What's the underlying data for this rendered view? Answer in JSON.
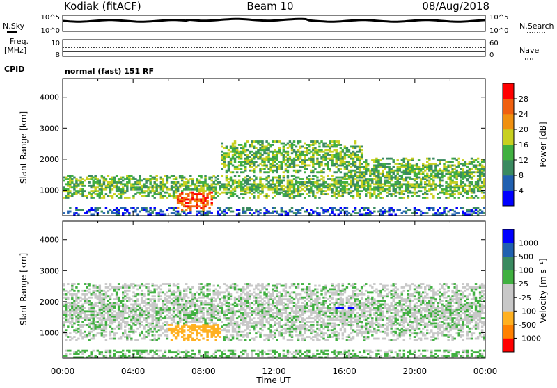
{
  "header": {
    "station": "Kodiak (fitACF)",
    "beam": "Beam 10",
    "date": "08/Aug/2018"
  },
  "left_labels": {
    "nsky": "N.Sky",
    "freq_line1": "Freq.",
    "freq_line2": "[MHz]",
    "cpid": "CPID",
    "nsky_ticks": [
      "10^5",
      "10^0"
    ],
    "freq_ticks": [
      "10",
      "8"
    ]
  },
  "right_labels": {
    "nsearch": "N.Search",
    "nave": "Nave",
    "nsearch_ticks": [
      "10^5",
      "10^0"
    ],
    "nave_ticks": [
      "60",
      "0"
    ]
  },
  "cpid_text": "normal (fast) 151 RF",
  "colors": {
    "power_scale": [
      "#0000ff",
      "#2060b0",
      "#3a8a60",
      "#40b040",
      "#c8d020",
      "#f09010",
      "#f06010",
      "#ff0000"
    ],
    "velocity_scale": [
      "#ff0000",
      "#ff8000",
      "#ffb020",
      "#c8c8c8",
      "#c8c8c8",
      "#40b040",
      "#3a8a60",
      "#2060b0",
      "#0000ff"
    ]
  },
  "chart_data": [
    {
      "type": "heatmap",
      "title": "",
      "quantity": "Power",
      "ylabel": "Slant Range [km]",
      "yticks": [
        "4000",
        "3000",
        "2000",
        "1000"
      ],
      "ylim": [
        180,
        4600
      ],
      "xlim": [
        0,
        24
      ],
      "colorbar_label": "Power [dB]",
      "colorbar_ticks": [
        "28",
        "24",
        "20",
        "16",
        "12",
        "8",
        "4"
      ],
      "features": [
        {
          "name": "lower band",
          "start_hour": 0,
          "end_hour": 24,
          "range_km": [
            700,
            1500
          ],
          "level": "medium"
        },
        {
          "name": "strong core",
          "start_hour": 6.5,
          "end_hour": 8.5,
          "range_km": [
            300,
            1100
          ],
          "level": "high"
        },
        {
          "name": "upper arc",
          "start_hour": 9,
          "end_hour": 17,
          "range_km": [
            1500,
            2600
          ],
          "level": "medium"
        },
        {
          "name": "evening band",
          "start_hour": 16,
          "end_hour": 24,
          "range_km": [
            1100,
            2000
          ],
          "level": "medium"
        }
      ]
    },
    {
      "type": "heatmap",
      "title": "",
      "quantity": "Velocity",
      "ylabel": "Slant Range [km]",
      "yticks": [
        "4000",
        "3000",
        "2000",
        "1000"
      ],
      "ylim": [
        180,
        4600
      ],
      "xlim": [
        0,
        24
      ],
      "colorbar_label": "Velocity [m s⁻¹]",
      "colorbar_ticks": [
        "1000",
        "500",
        "100",
        "25",
        "-25",
        "-100",
        "-500",
        "-1000"
      ],
      "xticks": [
        "00:00",
        "04:00",
        "08:00",
        "12:00",
        "16:00",
        "20:00",
        "00:00"
      ],
      "xlabel": "Time UT",
      "features": [
        {
          "name": "near-zero band",
          "start_hour": 0,
          "end_hour": 24,
          "range_km": [
            700,
            2600
          ],
          "velocity_ms": 0
        },
        {
          "name": "receding core",
          "start_hour": 6,
          "end_hour": 9,
          "range_km": [
            700,
            1500
          ],
          "velocity_ms": -300
        },
        {
          "name": "approaching patch",
          "start_hour": 15.5,
          "end_hour": 16.5,
          "range_km": [
            1500,
            2000
          ],
          "velocity_ms": 800
        }
      ]
    }
  ]
}
